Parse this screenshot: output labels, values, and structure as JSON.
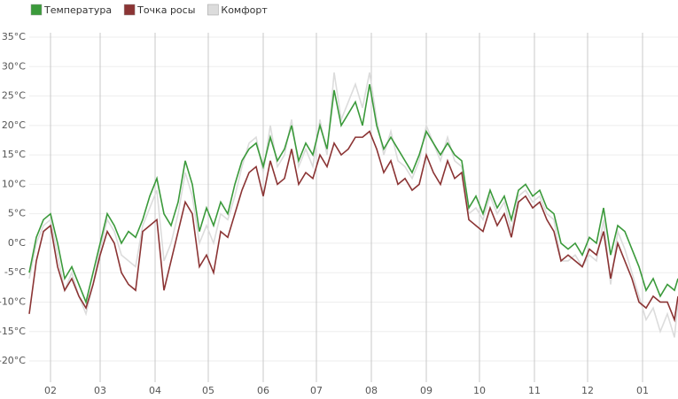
{
  "chart_data": {
    "type": "line",
    "x": [
      19,
      23,
      27,
      31,
      35,
      39,
      43,
      47,
      51,
      55,
      59,
      63,
      67,
      71,
      75,
      79,
      83,
      87,
      91,
      95,
      99,
      103,
      107,
      111,
      115,
      119,
      123,
      127,
      131,
      135,
      139,
      143,
      147,
      151,
      155,
      159,
      163,
      167,
      171,
      175,
      179,
      183,
      187,
      191,
      195,
      199,
      203,
      207,
      211,
      215,
      219,
      223,
      227,
      231,
      235,
      239,
      243,
      247,
      251,
      255,
      259,
      263,
      267,
      271,
      275,
      279,
      283,
      287,
      291,
      295,
      299,
      303,
      307,
      311,
      315,
      319,
      323,
      327,
      331,
      335,
      339,
      343,
      347,
      351,
      355,
      359,
      363,
      367,
      371,
      375,
      379,
      383,
      385
    ],
    "series": [
      {
        "name": "Температура",
        "color": "#3b9a3b",
        "values": [
          -5,
          1,
          4,
          5,
          0,
          -6,
          -4,
          -7,
          -10,
          -5,
          0,
          5,
          3,
          0,
          2,
          1,
          4,
          8,
          11,
          5,
          3,
          7,
          14,
          10,
          2,
          6,
          3,
          7,
          5,
          10,
          14,
          16,
          17,
          13,
          18,
          14,
          16,
          20,
          14,
          17,
          15,
          20,
          16,
          26,
          20,
          22,
          24,
          20,
          27,
          20,
          16,
          18,
          16,
          14,
          12,
          15,
          19,
          17,
          15,
          17,
          15,
          14,
          6,
          8,
          5,
          9,
          6,
          8,
          4,
          9,
          10,
          8,
          9,
          6,
          5,
          0,
          -1,
          0,
          -2,
          1,
          0,
          6,
          -2,
          3,
          2,
          -1,
          -4,
          -8,
          -6,
          -9,
          -7,
          -8,
          -6
        ]
      },
      {
        "name": "Точка росы",
        "color": "#8b3434",
        "values": [
          -12,
          -3,
          2,
          3,
          -4,
          -8,
          -6,
          -9,
          -11,
          -7,
          -2,
          2,
          0,
          -5,
          -7,
          -8,
          2,
          3,
          4,
          -8,
          -3,
          2,
          7,
          5,
          -4,
          -2,
          -5,
          2,
          1,
          5,
          9,
          12,
          13,
          8,
          14,
          10,
          11,
          16,
          10,
          12,
          11,
          15,
          13,
          17,
          15,
          16,
          18,
          18,
          19,
          16,
          12,
          14,
          10,
          11,
          9,
          10,
          15,
          12,
          10,
          14,
          11,
          12,
          4,
          3,
          2,
          6,
          3,
          5,
          1,
          7,
          8,
          6,
          7,
          4,
          2,
          -3,
          -2,
          -3,
          -4,
          -1,
          -2,
          2,
          -6,
          0,
          -3,
          -6,
          -10,
          -11,
          -9,
          -10,
          -10,
          -13,
          -9
        ]
      },
      {
        "name": "Комфорт",
        "color": "#dcdcdc",
        "values": [
          -6,
          0,
          3,
          4,
          -2,
          -8,
          -5,
          -9,
          -12,
          -7,
          -1,
          4,
          2,
          -2,
          -3,
          -4,
          3,
          6,
          9,
          -3,
          0,
          5,
          12,
          8,
          0,
          3,
          0,
          5,
          4,
          8,
          13,
          17,
          18,
          12,
          20,
          13,
          15,
          21,
          13,
          16,
          13,
          21,
          15,
          29,
          21,
          24,
          27,
          23,
          29,
          21,
          15,
          19,
          14,
          13,
          11,
          14,
          20,
          17,
          14,
          18,
          14,
          13,
          5,
          6,
          4,
          8,
          5,
          7,
          2,
          8,
          9,
          7,
          8,
          5,
          4,
          -3,
          -3,
          -2,
          -4,
          -2,
          -3,
          4,
          -7,
          2,
          -1,
          -5,
          -9,
          -13,
          -11,
          -15,
          -12,
          -16,
          -10
        ]
      }
    ],
    "xlim": [
      19,
      385
    ],
    "xticks": [
      {
        "value": 31,
        "label": "02"
      },
      {
        "value": 59,
        "label": "03"
      },
      {
        "value": 90,
        "label": "04"
      },
      {
        "value": 120,
        "label": "05"
      },
      {
        "value": 151,
        "label": "06"
      },
      {
        "value": 181,
        "label": "07"
      },
      {
        "value": 212,
        "label": "08"
      },
      {
        "value": 243,
        "label": "09"
      },
      {
        "value": 273,
        "label": "10"
      },
      {
        "value": 304,
        "label": "11"
      },
      {
        "value": 334,
        "label": "12"
      },
      {
        "value": 365,
        "label": "01"
      }
    ],
    "ylim": [
      -23.6,
      36.8
    ],
    "yticks": [
      {
        "value": 35,
        "label": "35°C"
      },
      {
        "value": 30,
        "label": "30°C"
      },
      {
        "value": 25,
        "label": "25°C"
      },
      {
        "value": 20,
        "label": "20°C"
      },
      {
        "value": 15,
        "label": "15°C"
      },
      {
        "value": 10,
        "label": "10°C"
      },
      {
        "value": 5,
        "label": "5°C"
      },
      {
        "value": 0,
        "label": "0°C"
      },
      {
        "value": -5,
        "label": "-5°C"
      },
      {
        "value": -10,
        "label": "-10°C"
      },
      {
        "value": -15,
        "label": "-15°C"
      },
      {
        "value": -20,
        "label": "-20°C"
      }
    ],
    "grid": true,
    "legend": "top-left"
  }
}
